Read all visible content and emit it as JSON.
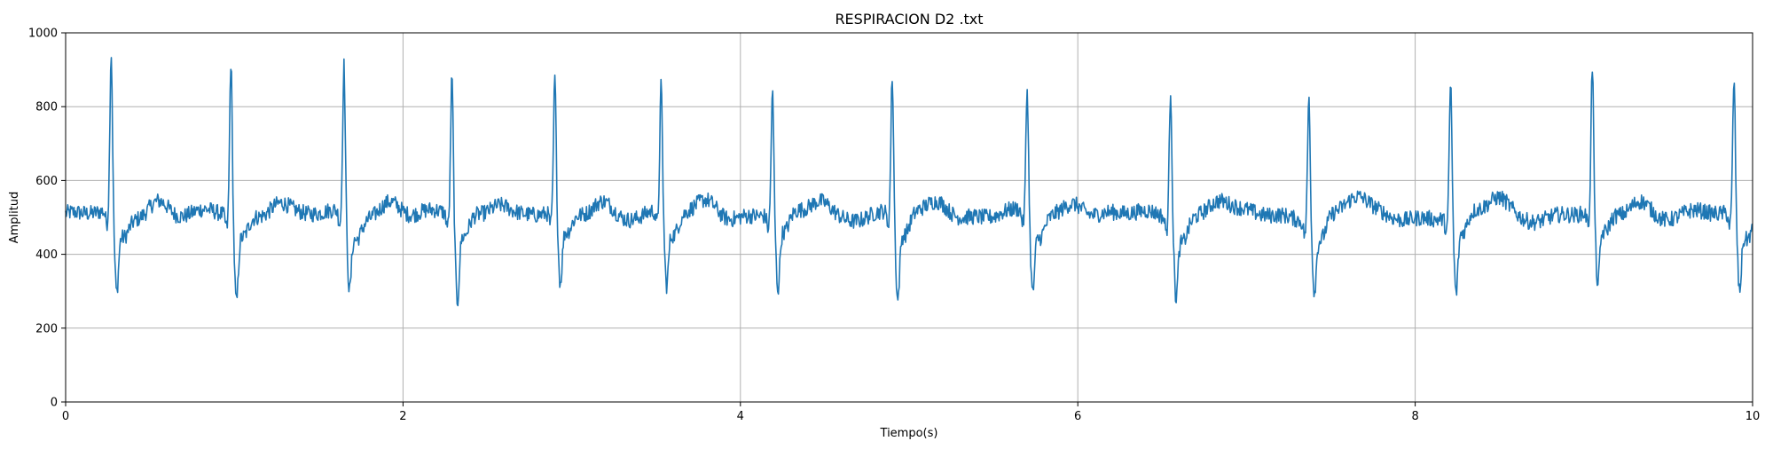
{
  "chart_data": {
    "type": "line",
    "title": "RESPIRACION D2 .txt",
    "xlabel": "Tiempo(s)",
    "ylabel": "Amplitud",
    "xlim": [
      0,
      10
    ],
    "ylim": [
      0,
      1000
    ],
    "xticks": [
      0,
      2,
      4,
      6,
      8,
      10
    ],
    "yticks": [
      0,
      200,
      400,
      600,
      800,
      1000
    ],
    "grid": true,
    "baseline": 505,
    "noise_amplitude": 22,
    "beats": [
      {
        "t": 0.27,
        "peak": 940,
        "trough": 315
      },
      {
        "t": 0.98,
        "peak": 928,
        "trough": 295
      },
      {
        "t": 1.65,
        "peak": 908,
        "trough": 325
      },
      {
        "t": 2.29,
        "peak": 882,
        "trough": 295
      },
      {
        "t": 2.9,
        "peak": 870,
        "trough": 332
      },
      {
        "t": 3.53,
        "peak": 848,
        "trough": 332
      },
      {
        "t": 4.19,
        "peak": 840,
        "trough": 322
      },
      {
        "t": 4.9,
        "peak": 880,
        "trough": 295
      },
      {
        "t": 5.7,
        "peak": 845,
        "trough": 318
      },
      {
        "t": 6.55,
        "peak": 863,
        "trough": 325
      },
      {
        "t": 7.37,
        "peak": 850,
        "trough": 340
      },
      {
        "t": 8.21,
        "peak": 873,
        "trough": 315
      },
      {
        "t": 9.05,
        "peak": 903,
        "trough": 330
      },
      {
        "t": 9.89,
        "peak": 872,
        "trough": 325
      }
    ],
    "series_color": "#1f77b4"
  }
}
